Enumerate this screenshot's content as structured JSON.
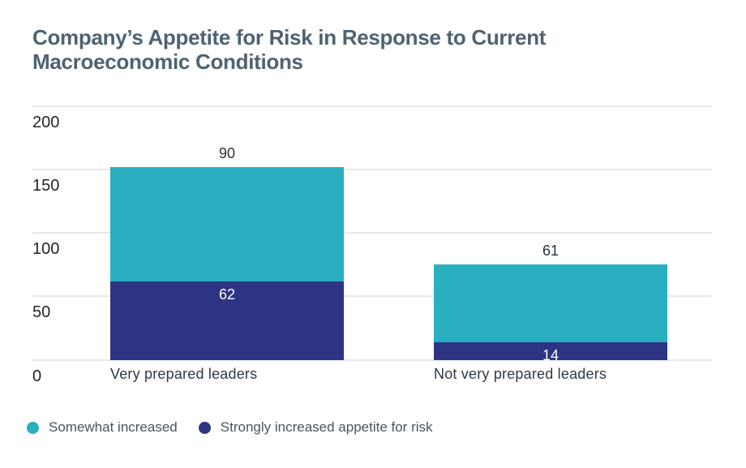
{
  "title": "Company’s Appetite for Risk in Response to Current Macroeconomic Conditions",
  "colors": {
    "background": "#ffffff",
    "teal": "#29afc0",
    "navy": "#2d3484",
    "gridline": "#e2eaee",
    "title_text": "#4d6372",
    "tick_text": "#212629",
    "category_text": "#2e3a47",
    "value_text_dark": "#28313c",
    "value_text_light": "#ffffff",
    "legend_text": "#47565f"
  },
  "chart_data": {
    "type": "bar",
    "stacked": true,
    "title": "Company’s Appetite for Risk in Response to Current Macroeconomic Conditions",
    "categories": [
      "Very prepared leaders",
      "Not very prepared leaders"
    ],
    "series": [
      {
        "name": "Somewhat increased",
        "color": "#29afc0",
        "values": [
          90,
          61
        ],
        "label_placement": "above",
        "label_color": "#28313c"
      },
      {
        "name": "Strongly increased appetite for risk",
        "color": "#2d3484",
        "values": [
          62,
          14
        ],
        "label_placement": "inside-top",
        "label_color": "#ffffff"
      }
    ],
    "stack_totals": [
      152,
      75
    ],
    "xlabel": "",
    "ylabel": "",
    "ylim": [
      0,
      200
    ],
    "yticks": [
      0,
      50,
      100,
      150,
      200
    ],
    "grid": "horizontal",
    "legend_position": "bottom-left"
  }
}
